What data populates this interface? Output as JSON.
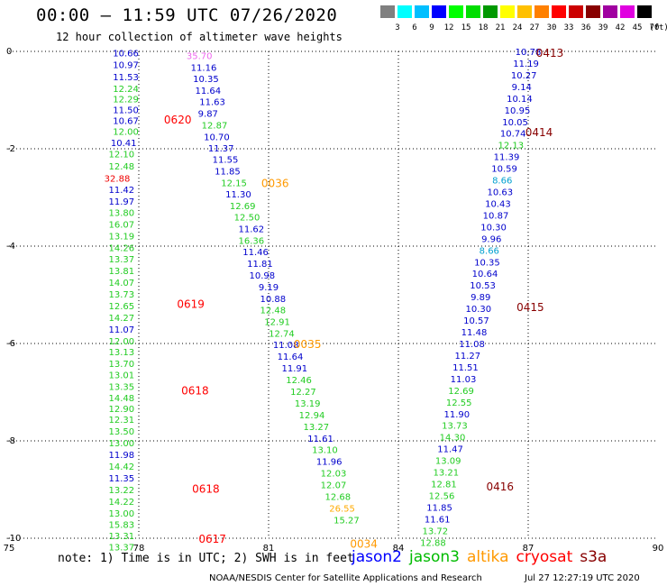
{
  "header": {
    "title": "00:00 – 11:59 UTC 07/26/2020",
    "subtitle": "12 hour collection of altimeter wave heights"
  },
  "scale": {
    "unit": "(ft)",
    "labels": [
      "3",
      "6",
      "9",
      "12",
      "15",
      "18",
      "21",
      "24",
      "27",
      "30",
      "33",
      "36",
      "39",
      "42",
      "45",
      "70"
    ],
    "colors": [
      "#808080",
      "#00ffff",
      "#00bfff",
      "#0000ff",
      "#00ff00",
      "#00dd00",
      "#009900",
      "#ffff00",
      "#ffc000",
      "#ff8000",
      "#ff0000",
      "#cc0000",
      "#880000",
      "#a000a0",
      "#e000e0",
      "#000000"
    ]
  },
  "axes": {
    "x_ticks": [
      "75",
      "78",
      "81",
      "84",
      "87",
      "90"
    ],
    "y_ticks": [
      "0",
      "-2",
      "-4",
      "-6",
      "-8",
      "-10"
    ],
    "xlim": [
      75,
      90
    ],
    "ylim": [
      -10,
      0
    ]
  },
  "tracks": [
    {
      "points": [
        [
          77.7,
          -0.03,
          "10.66"
        ],
        [
          77.7,
          -0.27,
          "10.97"
        ],
        [
          77.7,
          -0.52,
          "11.53"
        ],
        [
          77.7,
          -0.76,
          "12.24"
        ],
        [
          77.7,
          -0.97,
          "12.29"
        ],
        [
          77.7,
          -1.19,
          "11.50"
        ],
        [
          77.7,
          -1.42,
          "10.67"
        ],
        [
          77.7,
          -1.64,
          "12.00"
        ],
        [
          77.65,
          -1.87,
          "10.41"
        ],
        [
          77.6,
          -2.1,
          "12.10"
        ],
        [
          77.6,
          -2.35,
          "12.48"
        ],
        [
          77.5,
          -2.6,
          "32.88"
        ],
        [
          77.6,
          -2.83,
          "11.42"
        ],
        [
          77.6,
          -3.07,
          "11.97"
        ],
        [
          77.6,
          -3.31,
          "13.80"
        ],
        [
          77.6,
          -3.55,
          "16.07"
        ],
        [
          77.6,
          -3.79,
          "13.19"
        ],
        [
          77.6,
          -4.03,
          "14.26"
        ],
        [
          77.6,
          -4.26,
          "13.37"
        ],
        [
          77.6,
          -4.5,
          "13.81"
        ],
        [
          77.6,
          -4.74,
          "14.07"
        ],
        [
          77.6,
          -4.98,
          "13.73"
        ],
        [
          77.6,
          -5.22,
          "12.65"
        ],
        [
          77.6,
          -5.46,
          "14.27"
        ],
        [
          77.6,
          -5.7,
          "11.07"
        ],
        [
          77.6,
          -5.94,
          "12.00"
        ],
        [
          77.6,
          -6.17,
          "13.13"
        ],
        [
          77.6,
          -6.41,
          "13.70"
        ],
        [
          77.6,
          -6.64,
          "13.01"
        ],
        [
          77.6,
          -6.88,
          "13.35"
        ],
        [
          77.6,
          -7.11,
          "14.48"
        ],
        [
          77.6,
          -7.33,
          "12.90"
        ],
        [
          77.6,
          -7.56,
          "12.31"
        ],
        [
          77.6,
          -7.8,
          "13.50"
        ],
        [
          77.6,
          -8.04,
          "13.00"
        ],
        [
          77.6,
          -8.28,
          "11.98"
        ],
        [
          77.6,
          -8.52,
          "14.42"
        ],
        [
          77.6,
          -8.76,
          "11.35"
        ],
        [
          77.6,
          -9.0,
          "13.22"
        ],
        [
          77.6,
          -9.24,
          "14.22"
        ],
        [
          77.6,
          -9.48,
          "13.00"
        ],
        [
          77.6,
          -9.71,
          "15.83"
        ],
        [
          77.6,
          -9.94,
          "13.31"
        ],
        [
          77.6,
          -10.18,
          "13.37"
        ]
      ]
    },
    {
      "points": [
        [
          79.4,
          -0.08,
          "35.70"
        ],
        [
          79.5,
          -0.32,
          "11.16"
        ],
        [
          79.55,
          -0.56,
          "10.35"
        ],
        [
          79.6,
          -0.8,
          "11.64"
        ],
        [
          79.7,
          -1.03,
          "11.63"
        ],
        [
          79.6,
          -1.27,
          "9.87"
        ],
        [
          79.75,
          -1.51,
          "12.87"
        ],
        [
          79.8,
          -1.75,
          "10.70"
        ],
        [
          79.9,
          -1.98,
          "11.37"
        ],
        [
          80.0,
          -2.21,
          "11.55"
        ],
        [
          80.05,
          -2.45,
          "11.85"
        ],
        [
          80.2,
          -2.69,
          "12.15"
        ],
        [
          80.3,
          -2.93,
          "11.30"
        ],
        [
          80.4,
          -3.17,
          "12.69"
        ],
        [
          80.5,
          -3.4,
          "12.50"
        ],
        [
          80.6,
          -3.64,
          "11.62"
        ],
        [
          80.6,
          -3.88,
          "16.36"
        ],
        [
          80.7,
          -4.11,
          "11.46"
        ],
        [
          80.8,
          -4.35,
          "11.81"
        ],
        [
          80.85,
          -4.59,
          "10.98"
        ],
        [
          81.0,
          -4.83,
          "9.19"
        ],
        [
          81.1,
          -5.07,
          "10.88"
        ],
        [
          81.1,
          -5.31,
          "12.48"
        ],
        [
          81.2,
          -5.55,
          "12.91"
        ],
        [
          81.3,
          -5.79,
          "12.74"
        ],
        [
          81.4,
          -6.02,
          "11.08"
        ],
        [
          81.5,
          -6.26,
          "11.64"
        ],
        [
          81.6,
          -6.5,
          "11.91"
        ],
        [
          81.7,
          -6.74,
          "12.46"
        ],
        [
          81.8,
          -6.98,
          "12.27"
        ],
        [
          81.9,
          -7.22,
          "13.19"
        ],
        [
          82.0,
          -7.46,
          "12.94"
        ],
        [
          82.1,
          -7.7,
          "13.27"
        ],
        [
          82.2,
          -7.94,
          "11.61"
        ],
        [
          82.3,
          -8.18,
          "13.10"
        ],
        [
          82.4,
          -8.42,
          "11.96"
        ],
        [
          82.5,
          -8.66,
          "12.03"
        ],
        [
          82.5,
          -8.9,
          "12.07"
        ],
        [
          82.6,
          -9.14,
          "12.68"
        ],
        [
          82.7,
          -9.38,
          "26.55"
        ],
        [
          82.8,
          -9.62,
          "15.27"
        ]
      ]
    },
    {
      "points": [
        [
          87.0,
          0.0,
          "10.78"
        ],
        [
          86.95,
          -0.24,
          "11.19"
        ],
        [
          86.9,
          -0.48,
          "10.27"
        ],
        [
          86.85,
          -0.72,
          "9.14"
        ],
        [
          86.8,
          -0.96,
          "10.14"
        ],
        [
          86.75,
          -1.2,
          "10.95"
        ],
        [
          86.7,
          -1.44,
          "10.05"
        ],
        [
          86.65,
          -1.68,
          "10.74"
        ],
        [
          86.6,
          -1.92,
          "12.13"
        ],
        [
          86.5,
          -2.16,
          "11.39"
        ],
        [
          86.45,
          -2.4,
          "10.59"
        ],
        [
          86.4,
          -2.64,
          "8.66"
        ],
        [
          86.35,
          -2.88,
          "10.63"
        ],
        [
          86.3,
          -3.12,
          "10.43"
        ],
        [
          86.25,
          -3.36,
          "10.87"
        ],
        [
          86.2,
          -3.6,
          "10.30"
        ],
        [
          86.15,
          -3.84,
          "9.96"
        ],
        [
          86.1,
          -4.08,
          "8.66"
        ],
        [
          86.05,
          -4.32,
          "10.35"
        ],
        [
          86.0,
          -4.56,
          "10.64"
        ],
        [
          85.95,
          -4.8,
          "10.53"
        ],
        [
          85.9,
          -5.04,
          "9.89"
        ],
        [
          85.85,
          -5.28,
          "10.30"
        ],
        [
          85.8,
          -5.52,
          "10.57"
        ],
        [
          85.75,
          -5.76,
          "11.48"
        ],
        [
          85.7,
          -6.0,
          "11.08"
        ],
        [
          85.6,
          -6.24,
          "11.27"
        ],
        [
          85.55,
          -6.48,
          "11.51"
        ],
        [
          85.5,
          -6.72,
          "11.03"
        ],
        [
          85.45,
          -6.96,
          "12.69"
        ],
        [
          85.4,
          -7.2,
          "12.55"
        ],
        [
          85.35,
          -7.44,
          "11.90"
        ],
        [
          85.3,
          -7.68,
          "13.73"
        ],
        [
          85.25,
          -7.92,
          "14.30"
        ],
        [
          85.2,
          -8.16,
          "11.47"
        ],
        [
          85.15,
          -8.4,
          "13.09"
        ],
        [
          85.1,
          -8.64,
          "13.21"
        ],
        [
          85.05,
          -8.88,
          "12.81"
        ],
        [
          85.0,
          -9.12,
          "12.56"
        ],
        [
          84.95,
          -9.36,
          "11.85"
        ],
        [
          84.9,
          -9.6,
          "11.61"
        ],
        [
          84.85,
          -9.84,
          "13.72"
        ],
        [
          84.8,
          -10.08,
          "12.88"
        ]
      ]
    }
  ],
  "passes": [
    {
      "label": "0413",
      "color": "#880000",
      "x": 87.5,
      "y": -0.02
    },
    {
      "label": "0414",
      "color": "#880000",
      "x": 87.25,
      "y": -1.65
    },
    {
      "label": "0415",
      "color": "#880000",
      "x": 87.05,
      "y": -5.24
    },
    {
      "label": "0416",
      "color": "#880000",
      "x": 86.35,
      "y": -8.93
    },
    {
      "label": "0620",
      "color": "#ff0000",
      "x": 78.9,
      "y": -1.39
    },
    {
      "label": "0619",
      "color": "#ff0000",
      "x": 79.2,
      "y": -5.18
    },
    {
      "label": "0618",
      "color": "#ff0000",
      "x": 79.3,
      "y": -6.95
    },
    {
      "label": "0618",
      "color": "#ff0000",
      "x": 79.55,
      "y": -8.97
    },
    {
      "label": "0617",
      "color": "#ff0000",
      "x": 79.7,
      "y": -10.0
    },
    {
      "label": "0036",
      "color": "#ff9900",
      "x": 81.15,
      "y": -2.69
    },
    {
      "label": "0035",
      "color": "#ff9900",
      "x": 81.9,
      "y": -6.0
    },
    {
      "label": "0034",
      "color": "#ff9900",
      "x": 83.2,
      "y": -10.1
    }
  ],
  "footer": {
    "note": "note: 1) Time is in UTC; 2) SWH is in feet",
    "legend": [
      {
        "label": "jason2",
        "color": "#0000ff"
      },
      {
        "label": "jason3",
        "color": "#00bb00"
      },
      {
        "label": "altika",
        "color": "#ff9900"
      },
      {
        "label": "cryosat",
        "color": "#ff0000"
      },
      {
        "label": "s3a",
        "color": "#880000"
      }
    ],
    "credit": "NOAA/NESDIS Center for Satellite Applications and Research",
    "timestamp": "Jul 27 12:27:19 UTC 2020"
  }
}
